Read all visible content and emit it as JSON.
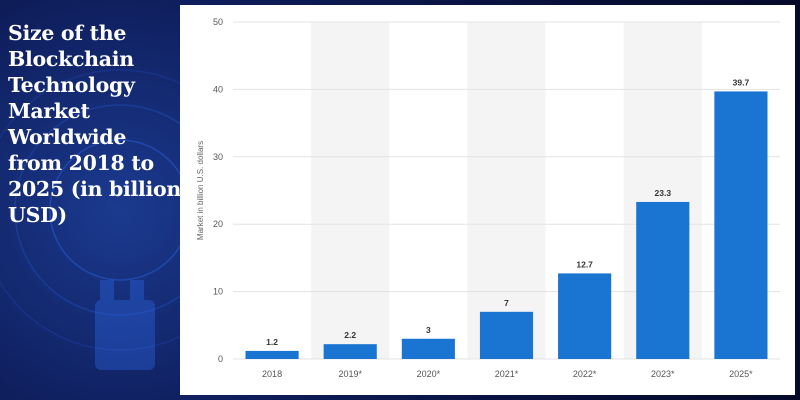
{
  "title": "Size of the Blockchain Technology Market Worldwide from 2018 to 2025 (in billion USD)",
  "colors": {
    "bar": "#1a74d2",
    "background": "#070f38",
    "panel": "#ffffff",
    "band": "#f4f4f4",
    "grid": "#e3e3e3"
  },
  "chart_data": {
    "type": "bar",
    "title": "",
    "xlabel": "",
    "ylabel": "Market in billion U.S. dollars",
    "categories": [
      "2018",
      "2019*",
      "2020*",
      "2021*",
      "2022*",
      "2023*",
      "2025*"
    ],
    "values": [
      1.2,
      2.2,
      3,
      7,
      12.7,
      23.3,
      39.7
    ],
    "data_labels": [
      "1.2",
      "2.2",
      "3",
      "7",
      "12.7",
      "23.3",
      "39.7"
    ],
    "ylim": [
      0,
      50
    ],
    "yticks": [
      0,
      10,
      20,
      30,
      40,
      50
    ],
    "grid": true,
    "legend": "none"
  }
}
